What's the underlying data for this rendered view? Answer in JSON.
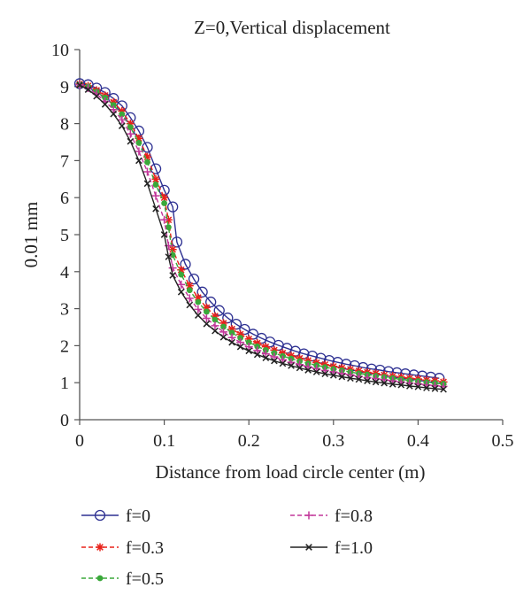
{
  "chart_data": {
    "type": "line",
    "title": "Z=0,Vertical displacement",
    "xlabel": "Distance from load circle center (m)",
    "ylabel": "0.01 mm",
    "xlim": [
      0,
      0.5
    ],
    "ylim": [
      0,
      10
    ],
    "xticks": [
      "0",
      "0.1",
      "0.2",
      "0.3",
      "0.4",
      "0.5"
    ],
    "yticks": [
      "0",
      "1",
      "2",
      "3",
      "4",
      "5",
      "6",
      "7",
      "8",
      "9",
      "10"
    ],
    "grid": false,
    "legend_position": "bottom",
    "series": [
      {
        "name": "f=0",
        "color": "#2e3192",
        "marker": "circle",
        "dash": "solid",
        "points": [
          [
            0,
            9.08
          ],
          [
            0.01,
            9.05
          ],
          [
            0.02,
            8.96
          ],
          [
            0.03,
            8.84
          ],
          [
            0.04,
            8.68
          ],
          [
            0.05,
            8.48
          ],
          [
            0.06,
            8.16
          ],
          [
            0.07,
            7.8
          ],
          [
            0.08,
            7.36
          ],
          [
            0.09,
            6.78
          ],
          [
            0.1,
            6.2
          ],
          [
            0.11,
            5.75
          ],
          [
            0.115,
            4.8
          ],
          [
            0.125,
            4.2
          ],
          [
            0.135,
            3.8
          ],
          [
            0.145,
            3.45
          ],
          [
            0.155,
            3.18
          ],
          [
            0.165,
            2.95
          ],
          [
            0.175,
            2.75
          ],
          [
            0.185,
            2.58
          ],
          [
            0.195,
            2.44
          ],
          [
            0.205,
            2.31
          ],
          [
            0.215,
            2.2
          ],
          [
            0.225,
            2.1
          ],
          [
            0.235,
            2.01
          ],
          [
            0.245,
            1.93
          ],
          [
            0.255,
            1.85
          ],
          [
            0.265,
            1.78
          ],
          [
            0.275,
            1.72
          ],
          [
            0.285,
            1.66
          ],
          [
            0.295,
            1.6
          ],
          [
            0.305,
            1.55
          ],
          [
            0.315,
            1.5
          ],
          [
            0.325,
            1.46
          ],
          [
            0.335,
            1.41
          ],
          [
            0.345,
            1.37
          ],
          [
            0.355,
            1.34
          ],
          [
            0.365,
            1.3
          ],
          [
            0.375,
            1.27
          ],
          [
            0.385,
            1.24
          ],
          [
            0.395,
            1.21
          ],
          [
            0.405,
            1.18
          ],
          [
            0.415,
            1.15
          ],
          [
            0.425,
            1.12
          ]
        ]
      },
      {
        "name": "f=0.3",
        "color": "#e8221a",
        "marker": "asterisk",
        "dash": "dashed",
        "points": [
          [
            0,
            9.07
          ],
          [
            0.01,
            9.02
          ],
          [
            0.02,
            8.9
          ],
          [
            0.03,
            8.76
          ],
          [
            0.04,
            8.58
          ],
          [
            0.05,
            8.34
          ],
          [
            0.06,
            8.0
          ],
          [
            0.07,
            7.6
          ],
          [
            0.08,
            7.1
          ],
          [
            0.09,
            6.5
          ],
          [
            0.1,
            6.0
          ],
          [
            0.105,
            5.4
          ],
          [
            0.11,
            4.6
          ],
          [
            0.12,
            4.05
          ],
          [
            0.13,
            3.62
          ],
          [
            0.14,
            3.3
          ],
          [
            0.15,
            3.03
          ],
          [
            0.16,
            2.8
          ],
          [
            0.17,
            2.61
          ],
          [
            0.18,
            2.45
          ],
          [
            0.19,
            2.31
          ],
          [
            0.2,
            2.18
          ],
          [
            0.21,
            2.07
          ],
          [
            0.22,
            1.97
          ],
          [
            0.23,
            1.88
          ],
          [
            0.24,
            1.8
          ],
          [
            0.25,
            1.73
          ],
          [
            0.26,
            1.66
          ],
          [
            0.27,
            1.6
          ],
          [
            0.28,
            1.54
          ],
          [
            0.29,
            1.49
          ],
          [
            0.3,
            1.44
          ],
          [
            0.31,
            1.4
          ],
          [
            0.32,
            1.36
          ],
          [
            0.33,
            1.32
          ],
          [
            0.34,
            1.28
          ],
          [
            0.35,
            1.25
          ],
          [
            0.36,
            1.21
          ],
          [
            0.37,
            1.18
          ],
          [
            0.38,
            1.15
          ],
          [
            0.39,
            1.12
          ],
          [
            0.4,
            1.1
          ],
          [
            0.41,
            1.07
          ],
          [
            0.42,
            1.05
          ],
          [
            0.43,
            1.02
          ]
        ]
      },
      {
        "name": "f=0.5",
        "color": "#3aa83a",
        "marker": "dot",
        "dash": "dashed",
        "points": [
          [
            0,
            9.06
          ],
          [
            0.01,
            9.0
          ],
          [
            0.02,
            8.86
          ],
          [
            0.03,
            8.7
          ],
          [
            0.04,
            8.5
          ],
          [
            0.05,
            8.25
          ],
          [
            0.06,
            7.9
          ],
          [
            0.07,
            7.48
          ],
          [
            0.08,
            6.96
          ],
          [
            0.09,
            6.35
          ],
          [
            0.1,
            5.85
          ],
          [
            0.105,
            5.2
          ],
          [
            0.11,
            4.45
          ],
          [
            0.12,
            3.92
          ],
          [
            0.13,
            3.5
          ],
          [
            0.14,
            3.18
          ],
          [
            0.15,
            2.92
          ],
          [
            0.16,
            2.7
          ],
          [
            0.17,
            2.51
          ],
          [
            0.18,
            2.35
          ],
          [
            0.19,
            2.21
          ],
          [
            0.2,
            2.09
          ],
          [
            0.21,
            1.98
          ],
          [
            0.22,
            1.88
          ],
          [
            0.23,
            1.8
          ],
          [
            0.24,
            1.72
          ],
          [
            0.25,
            1.65
          ],
          [
            0.26,
            1.58
          ],
          [
            0.27,
            1.52
          ],
          [
            0.28,
            1.47
          ],
          [
            0.29,
            1.42
          ],
          [
            0.3,
            1.37
          ],
          [
            0.31,
            1.33
          ],
          [
            0.32,
            1.29
          ],
          [
            0.33,
            1.25
          ],
          [
            0.34,
            1.22
          ],
          [
            0.35,
            1.18
          ],
          [
            0.36,
            1.15
          ],
          [
            0.37,
            1.12
          ],
          [
            0.38,
            1.09
          ],
          [
            0.39,
            1.06
          ],
          [
            0.4,
            1.04
          ],
          [
            0.41,
            1.01
          ],
          [
            0.42,
            0.99
          ],
          [
            0.43,
            0.97
          ]
        ]
      },
      {
        "name": "f=0.8",
        "color": "#c2379a",
        "marker": "plus",
        "dash": "dashed",
        "points": [
          [
            0,
            9.05
          ],
          [
            0.01,
            8.96
          ],
          [
            0.02,
            8.8
          ],
          [
            0.03,
            8.6
          ],
          [
            0.04,
            8.38
          ],
          [
            0.05,
            8.1
          ],
          [
            0.06,
            7.72
          ],
          [
            0.07,
            7.25
          ],
          [
            0.08,
            6.7
          ],
          [
            0.09,
            6.05
          ],
          [
            0.1,
            5.4
          ],
          [
            0.105,
            4.7
          ],
          [
            0.11,
            4.1
          ],
          [
            0.12,
            3.65
          ],
          [
            0.13,
            3.28
          ],
          [
            0.14,
            2.98
          ],
          [
            0.15,
            2.74
          ],
          [
            0.16,
            2.54
          ],
          [
            0.17,
            2.37
          ],
          [
            0.18,
            2.22
          ],
          [
            0.19,
            2.09
          ],
          [
            0.2,
            1.97
          ],
          [
            0.21,
            1.87
          ],
          [
            0.22,
            1.78
          ],
          [
            0.23,
            1.7
          ],
          [
            0.24,
            1.62
          ],
          [
            0.25,
            1.55
          ],
          [
            0.26,
            1.49
          ],
          [
            0.27,
            1.43
          ],
          [
            0.28,
            1.38
          ],
          [
            0.29,
            1.33
          ],
          [
            0.3,
            1.29
          ],
          [
            0.31,
            1.25
          ],
          [
            0.32,
            1.21
          ],
          [
            0.33,
            1.17
          ],
          [
            0.34,
            1.14
          ],
          [
            0.35,
            1.11
          ],
          [
            0.36,
            1.08
          ],
          [
            0.37,
            1.05
          ],
          [
            0.38,
            1.02
          ],
          [
            0.39,
            0.99
          ],
          [
            0.4,
            0.97
          ],
          [
            0.41,
            0.94
          ],
          [
            0.42,
            0.92
          ],
          [
            0.43,
            0.9
          ]
        ]
      },
      {
        "name": "f=1.0",
        "color": "#222222",
        "marker": "cross",
        "dash": "solid",
        "points": [
          [
            0,
            9.04
          ],
          [
            0.01,
            8.92
          ],
          [
            0.02,
            8.74
          ],
          [
            0.03,
            8.52
          ],
          [
            0.04,
            8.26
          ],
          [
            0.05,
            7.94
          ],
          [
            0.06,
            7.52
          ],
          [
            0.07,
            7.0
          ],
          [
            0.08,
            6.38
          ],
          [
            0.09,
            5.7
          ],
          [
            0.1,
            5.0
          ],
          [
            0.105,
            4.4
          ],
          [
            0.11,
            3.9
          ],
          [
            0.12,
            3.45
          ],
          [
            0.13,
            3.1
          ],
          [
            0.14,
            2.82
          ],
          [
            0.15,
            2.59
          ],
          [
            0.16,
            2.4
          ],
          [
            0.17,
            2.23
          ],
          [
            0.18,
            2.09
          ],
          [
            0.19,
            1.97
          ],
          [
            0.2,
            1.86
          ],
          [
            0.21,
            1.76
          ],
          [
            0.22,
            1.67
          ],
          [
            0.23,
            1.59
          ],
          [
            0.24,
            1.52
          ],
          [
            0.25,
            1.46
          ],
          [
            0.26,
            1.4
          ],
          [
            0.27,
            1.34
          ],
          [
            0.28,
            1.29
          ],
          [
            0.29,
            1.24
          ],
          [
            0.3,
            1.2
          ],
          [
            0.31,
            1.16
          ],
          [
            0.32,
            1.12
          ],
          [
            0.33,
            1.09
          ],
          [
            0.34,
            1.05
          ],
          [
            0.35,
            1.02
          ],
          [
            0.36,
            0.99
          ],
          [
            0.37,
            0.96
          ],
          [
            0.38,
            0.94
          ],
          [
            0.39,
            0.91
          ],
          [
            0.4,
            0.89
          ],
          [
            0.41,
            0.86
          ],
          [
            0.42,
            0.84
          ],
          [
            0.43,
            0.82
          ]
        ]
      }
    ]
  }
}
